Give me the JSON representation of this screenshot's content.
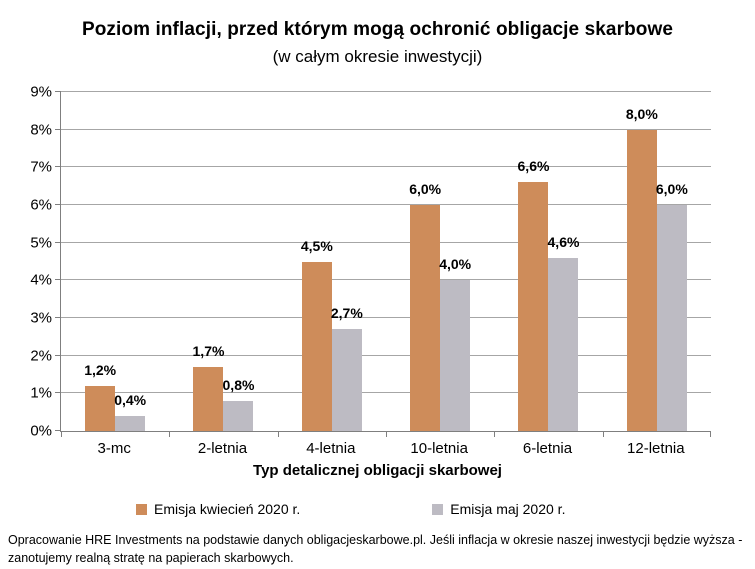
{
  "title": "Poziom inflacji, przed którym mogą ochronić obligacje skarbowe",
  "subtitle": "(w całym okresie inwestycji)",
  "chart_data": {
    "type": "bar",
    "categories": [
      "3-mc",
      "2-letnia",
      "4-letnia",
      "10-letnia",
      "6-letnia",
      "12-letnia"
    ],
    "series": [
      {
        "name": "Emisja kwiecień 2020 r.",
        "color": "#CE8C5A",
        "values": [
          1.2,
          1.7,
          4.5,
          6.0,
          6.6,
          8.0
        ],
        "labels": [
          "1,2%",
          "1,7%",
          "4,5%",
          "6,0%",
          "6,6%",
          "8,0%"
        ]
      },
      {
        "name": "Emisja maj 2020 r.",
        "color": "#BDBBC3",
        "values": [
          0.4,
          0.8,
          2.7,
          4.0,
          4.6,
          6.0
        ],
        "labels": [
          "0,4%",
          "0,8%",
          "2,7%",
          "4,0%",
          "4,6%",
          "6,0%"
        ]
      }
    ],
    "xlabel": "Typ detalicznej obligacji skarbowej",
    "ylabel": "",
    "ylim": [
      0,
      9
    ],
    "ytick_step": 1,
    "ytick_suffix": "%",
    "grid": true,
    "legend_position": "bottom",
    "gridline_color": "#a6a6a6",
    "axis_color": "#7f7f7f"
  },
  "footer": "Opracowanie HRE Investments na podstawie danych obligacjeskarbowe.pl. Jeśli inflacja w okresie naszej inwestycji będzie wyższa - zanotujemy realną stratę na papierach skarbowych."
}
